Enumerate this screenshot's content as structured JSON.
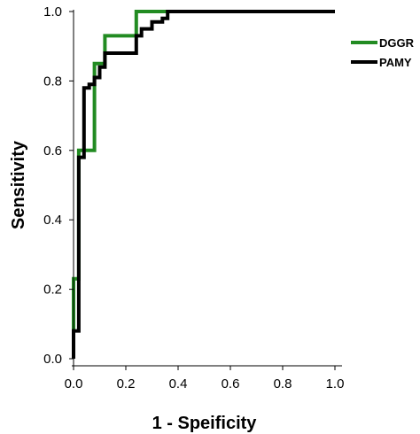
{
  "chart_data": {
    "type": "line",
    "title": "",
    "xlabel": "1 - Speificity",
    "ylabel": "Sensitivity",
    "xlim": [
      0,
      1
    ],
    "ylim": [
      0,
      1
    ],
    "x_ticks": [
      "0.0",
      "0.2",
      "0.4",
      "0.6",
      "0.8",
      "1.0"
    ],
    "y_ticks": [
      "0.0",
      "0.2",
      "0.4",
      "0.6",
      "0.8",
      "1.0"
    ],
    "grid": false,
    "legend_position": "top-right",
    "series": [
      {
        "name": "DGGR",
        "color": "#228B22",
        "x": [
          0.0,
          0.0,
          0.0,
          0.02,
          0.02,
          0.02,
          0.02,
          0.06,
          0.06,
          0.06,
          0.06,
          0.08,
          0.08,
          0.12,
          0.12,
          0.12,
          0.24,
          0.24,
          0.24,
          0.24,
          0.24,
          0.24,
          0.32,
          0.32,
          0.36,
          1.0
        ],
        "y": [
          0.0,
          0.08,
          0.23,
          0.23,
          0.45,
          0.58,
          0.6,
          0.6,
          0.6,
          0.6,
          0.6,
          0.6,
          0.85,
          0.85,
          0.93,
          0.93,
          0.93,
          0.93,
          1.0,
          1.0,
          1.0,
          1.0,
          1.0,
          1.0,
          1.0,
          1.0
        ]
      },
      {
        "name": "PAMY",
        "color": "#000000",
        "x": [
          0.0,
          0.0,
          0.02,
          0.02,
          0.04,
          0.04,
          0.06,
          0.06,
          0.08,
          0.08,
          0.1,
          0.1,
          0.12,
          0.12,
          0.24,
          0.24,
          0.26,
          0.26,
          0.3,
          0.3,
          0.34,
          0.34,
          0.36,
          0.36,
          1.0
        ],
        "y": [
          0.0,
          0.08,
          0.08,
          0.58,
          0.58,
          0.78,
          0.78,
          0.79,
          0.79,
          0.81,
          0.81,
          0.84,
          0.84,
          0.88,
          0.88,
          0.93,
          0.93,
          0.95,
          0.95,
          0.97,
          0.97,
          0.98,
          0.98,
          1.0,
          1.0
        ]
      }
    ]
  }
}
